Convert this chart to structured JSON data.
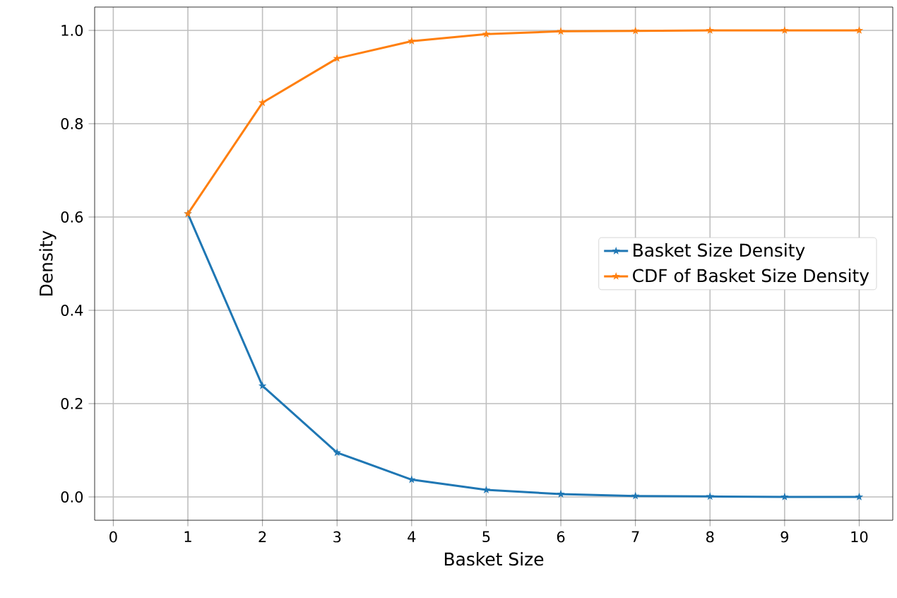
{
  "chart_data": {
    "type": "line",
    "xlabel": "Basket Size",
    "ylabel": "Density",
    "x": [
      1,
      2,
      3,
      4,
      5,
      6,
      7,
      8,
      9,
      10
    ],
    "series": [
      {
        "name": "Basket Size Density",
        "color": "#1f77b4",
        "values": [
          0.607,
          0.238,
          0.095,
          0.037,
          0.015,
          0.006,
          0.002,
          0.001,
          0.0,
          0.0
        ]
      },
      {
        "name": "CDF of Basket Size Density",
        "color": "#ff7f0e",
        "values": [
          0.607,
          0.845,
          0.94,
          0.977,
          0.992,
          0.998,
          0.999,
          1.0,
          1.0,
          1.0
        ]
      }
    ],
    "xlim": [
      -0.25,
      10.45
    ],
    "ylim": [
      -0.05,
      1.05
    ],
    "xticks": [
      0,
      1,
      2,
      3,
      4,
      5,
      6,
      7,
      8,
      9,
      10
    ],
    "yticks": [
      {
        "value": 0,
        "label": "0.0"
      },
      0.2,
      0.4,
      0.6,
      0.8,
      {
        "value": 1,
        "label": "1.0"
      }
    ],
    "grid": true,
    "legend": "center right",
    "marker": "star",
    "line_style": "solid"
  }
}
